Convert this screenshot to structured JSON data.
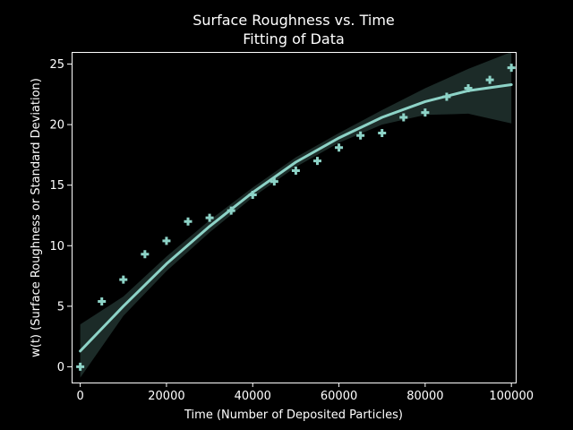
{
  "chart_data": {
    "type": "scatter",
    "title": [
      "Surface Roughness vs. Time",
      "Fitting of Data"
    ],
    "xlabel": "Time (Number of Deposited Particles)",
    "ylabel": "w(t) (Surface Roughness or Standard Deviation)",
    "xlim": [
      -2000,
      101000
    ],
    "ylim": [
      -1.3,
      26.0
    ],
    "xticks": [
      0,
      20000,
      40000,
      60000,
      80000,
      100000
    ],
    "yticks": [
      0,
      5,
      10,
      15,
      20,
      25
    ],
    "grid": false,
    "series": [
      {
        "kind": "scatter",
        "marker": "plus",
        "x": [
          0,
          5000,
          10000,
          15000,
          20000,
          25000,
          30000,
          35000,
          40000,
          45000,
          50000,
          55000,
          60000,
          65000,
          70000,
          75000,
          80000,
          85000,
          90000,
          95000,
          100000
        ],
        "y": [
          0.0,
          5.4,
          7.2,
          9.3,
          10.4,
          12.0,
          12.3,
          12.9,
          14.2,
          15.3,
          16.2,
          17.0,
          18.1,
          19.1,
          19.3,
          20.6,
          21.0,
          22.3,
          23.0,
          23.7,
          24.7
        ]
      },
      {
        "kind": "fit-line",
        "x": [
          0,
          10000,
          20000,
          30000,
          40000,
          50000,
          60000,
          70000,
          80000,
          90000,
          100000
        ],
        "y": [
          1.3,
          5.0,
          8.5,
          11.6,
          14.4,
          16.9,
          18.9,
          20.6,
          21.9,
          22.8,
          23.3
        ]
      },
      {
        "kind": "confidence-band",
        "x": [
          0,
          10000,
          20000,
          30000,
          40000,
          50000,
          60000,
          70000,
          80000,
          90000,
          100000
        ],
        "lower": [
          -0.9,
          4.2,
          7.9,
          11.1,
          14.0,
          16.5,
          18.5,
          20.0,
          20.8,
          20.9,
          20.1
        ],
        "upper": [
          3.5,
          5.8,
          9.1,
          12.1,
          14.8,
          17.3,
          19.3,
          21.2,
          23.0,
          24.6,
          26.0
        ]
      }
    ],
    "colors": {
      "background": "#000000",
      "foreground": "#ffffff",
      "marker": "#8dd3c7",
      "band": "#1c2b28"
    }
  }
}
